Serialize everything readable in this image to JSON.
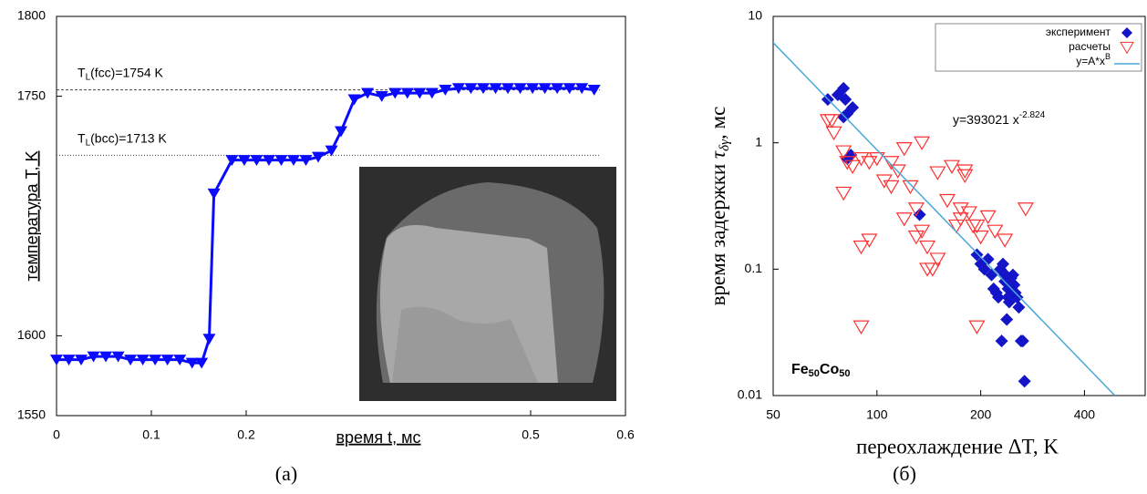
{
  "chart_data": [
    {
      "type": "line",
      "xlabel": "время t, мс",
      "ylabel": "температура T, K",
      "panel": "(а)",
      "xlim": [
        0,
        0.6
      ],
      "ylim": [
        1550,
        1800
      ],
      "xticks": [
        0,
        0.1,
        0.2,
        0.5,
        0.6
      ],
      "yticks": [
        1550,
        1600,
        1750,
        1800
      ],
      "annotations": [
        {
          "value": 1754,
          "text": "T",
          "sub": "L",
          "text2": "(fcc)=1754 K",
          "style": "dashed"
        },
        {
          "value": 1713,
          "text": "T",
          "sub": "L",
          "text2": "(bcc)=1713 K",
          "style": "dotted"
        }
      ],
      "series": [
        {
          "color": "#0a0aff",
          "x": [
            0,
            0.013,
            0.026,
            0.039,
            0.052,
            0.065,
            0.078,
            0.091,
            0.104,
            0.117,
            0.13,
            0.143,
            0.153,
            0.161,
            0.166,
            0.185,
            0.198,
            0.211,
            0.224,
            0.237,
            0.25,
            0.263,
            0.276,
            0.29,
            0.3,
            0.314,
            0.328,
            0.343,
            0.357,
            0.37,
            0.383,
            0.396,
            0.41,
            0.424,
            0.437,
            0.45,
            0.463,
            0.476,
            0.489,
            0.502,
            0.515,
            0.528,
            0.541,
            0.554,
            0.567
          ],
          "values": [
            1585,
            1585,
            1585,
            1587,
            1587,
            1587,
            1585,
            1585,
            1585,
            1585,
            1585,
            1583,
            1583,
            1598,
            1689,
            1710,
            1710,
            1710,
            1710,
            1710,
            1710,
            1710,
            1712,
            1716,
            1728,
            1748,
            1752,
            1750,
            1752,
            1752,
            1752,
            1752,
            1754,
            1755,
            1755,
            1755,
            1755,
            1755,
            1755,
            1755,
            1755,
            1755,
            1755,
            1755,
            1754
          ]
        }
      ]
    },
    {
      "type": "scatter",
      "log_x": true,
      "log_y": true,
      "legend": "top-right",
      "xlabel": "переохлаждение ΔT, K",
      "ylabel": {
        "text": "время задержки ",
        "sym": "τ",
        "sub": "δγ",
        "text2": ", мс"
      },
      "panel": "(б)",
      "xlim": [
        50,
        600
      ],
      "ylim": [
        0.01,
        10
      ],
      "xticks": [
        50,
        100,
        200,
        400
      ],
      "yticks": [
        0.01,
        0.1,
        1,
        10
      ],
      "fit_label": {
        "text": "y=393021 x",
        "sup": "-2.824"
      },
      "sample": {
        "parts": [
          "Fe",
          "50",
          "Co",
          "50"
        ]
      },
      "series": [
        {
          "name": "эксперимент",
          "marker": "diamond",
          "color": "#1414c8",
          "x": [
            72,
            77,
            80,
            81,
            82,
            80,
            85,
            82,
            84,
            133,
            195,
            200,
            205,
            210,
            215,
            218,
            222,
            225,
            228,
            232,
            235,
            236,
            240,
            242,
            245,
            248,
            250,
            252,
            255,
            258,
            230,
            238,
            262,
            265,
            268,
            240
          ],
          "values": [
            2.2,
            2.4,
            2.7,
            2.2,
            1.7,
            1.6,
            1.9,
            0.75,
            0.8,
            0.27,
            0.13,
            0.11,
            0.1,
            0.12,
            0.09,
            0.07,
            0.065,
            0.06,
            0.1,
            0.11,
            0.08,
            0.09,
            0.07,
            0.055,
            0.085,
            0.09,
            0.075,
            0.065,
            0.06,
            0.05,
            0.027,
            0.04,
            0.027,
            0.027,
            0.013,
            0.06
          ]
        },
        {
          "name": "расчеты",
          "marker": "triangle",
          "color": "#ff3030",
          "x": [
            72,
            74,
            75,
            80,
            82,
            85,
            90,
            95,
            100,
            105,
            110,
            115,
            80,
            90,
            95,
            120,
            125,
            130,
            130,
            135,
            140,
            145,
            150,
            150,
            160,
            165,
            170,
            175,
            175,
            180,
            180,
            185,
            190,
            195,
            200,
            210,
            220,
            195,
            90,
            270,
            235,
            140,
            120,
            135,
            110
          ],
          "values": [
            1.5,
            1.5,
            1.2,
            0.85,
            0.7,
            0.65,
            0.75,
            0.7,
            0.75,
            0.5,
            0.7,
            0.6,
            0.4,
            0.15,
            0.17,
            0.25,
            0.45,
            0.18,
            0.3,
            0.2,
            0.15,
            0.1,
            0.12,
            0.58,
            0.35,
            0.65,
            0.22,
            0.3,
            0.25,
            0.6,
            0.55,
            0.28,
            0.22,
            0.22,
            0.18,
            0.26,
            0.2,
            0.035,
            0.035,
            0.3,
            0.17,
            0.1,
            0.9,
            1.0,
            0.45
          ]
        },
        {
          "name": "y=A*x",
          "name_sup": "B",
          "marker": "line",
          "color": "#4aa8d8",
          "x": [
            50,
            490
          ],
          "values": [
            6.2,
            0.01
          ]
        }
      ]
    }
  ]
}
